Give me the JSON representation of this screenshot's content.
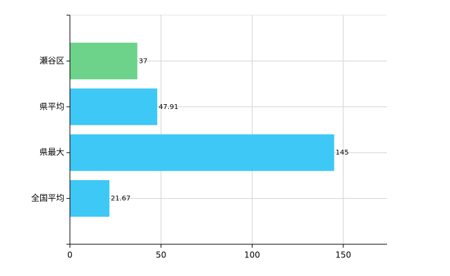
{
  "chart_data": {
    "type": "bar",
    "orientation": "horizontal",
    "categories": [
      "瀬谷区",
      "県平均",
      "県最大",
      "全国平均"
    ],
    "values": [
      37,
      47.91,
      145,
      21.67
    ],
    "colors": [
      "#6dd38a",
      "#3ec8f6",
      "#3ec8f6",
      "#3ec8f6"
    ],
    "xlim": [
      0,
      174
    ],
    "xticks": [
      0,
      50,
      100,
      150
    ],
    "grid": true
  }
}
